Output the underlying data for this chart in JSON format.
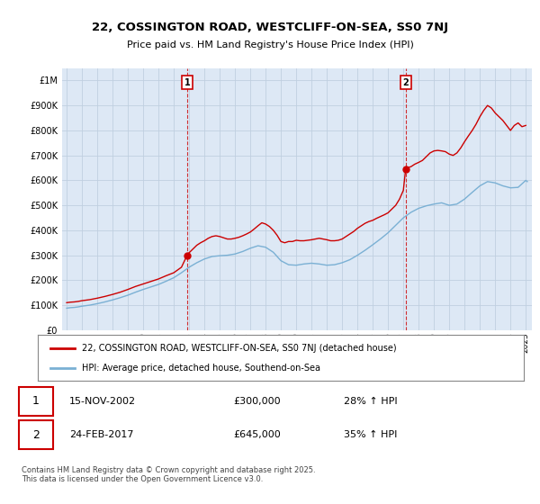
{
  "title_line1": "22, COSSINGTON ROAD, WESTCLIFF-ON-SEA, SS0 7NJ",
  "title_line2": "Price paid vs. HM Land Registry's House Price Index (HPI)",
  "legend_line1": "22, COSSINGTON ROAD, WESTCLIFF-ON-SEA, SS0 7NJ (detached house)",
  "legend_line2": "HPI: Average price, detached house, Southend-on-Sea",
  "annotation1_label": "1",
  "annotation1_date": "15-NOV-2002",
  "annotation1_price": "£300,000",
  "annotation1_hpi": "28% ↑ HPI",
  "annotation2_label": "2",
  "annotation2_date": "24-FEB-2017",
  "annotation2_price": "£645,000",
  "annotation2_hpi": "35% ↑ HPI",
  "footer": "Contains HM Land Registry data © Crown copyright and database right 2025.\nThis data is licensed under the Open Government Licence v3.0.",
  "red_color": "#cc0000",
  "blue_color": "#7ab0d4",
  "vline_color": "#cc0000",
  "plot_bg_color": "#dde8f5",
  "grid_color": "#c0cfe0",
  "ylim": [
    0,
    1050000
  ],
  "yticks": [
    0,
    100000,
    200000,
    300000,
    400000,
    500000,
    600000,
    700000,
    800000,
    900000,
    1000000
  ],
  "ytick_labels": [
    "£0",
    "£100K",
    "£200K",
    "£300K",
    "£400K",
    "£500K",
    "£600K",
    "£700K",
    "£800K",
    "£900K",
    "£1M"
  ],
  "sale1_x": 2002.87,
  "sale1_y": 300000,
  "sale2_x": 2017.15,
  "sale2_y": 645000,
  "red_line_data": [
    [
      1995.0,
      110000
    ],
    [
      1995.25,
      112000
    ],
    [
      1995.5,
      113000
    ],
    [
      1995.75,
      115000
    ],
    [
      1996.0,
      118000
    ],
    [
      1996.5,
      122000
    ],
    [
      1997.0,
      128000
    ],
    [
      1997.5,
      135000
    ],
    [
      1998.0,
      143000
    ],
    [
      1998.5,
      152000
    ],
    [
      1999.0,
      163000
    ],
    [
      1999.5,
      175000
    ],
    [
      2000.0,
      185000
    ],
    [
      2000.5,
      195000
    ],
    [
      2001.0,
      205000
    ],
    [
      2001.5,
      218000
    ],
    [
      2002.0,
      230000
    ],
    [
      2002.5,
      252000
    ],
    [
      2002.87,
      300000
    ],
    [
      2003.0,
      310000
    ],
    [
      2003.25,
      325000
    ],
    [
      2003.5,
      340000
    ],
    [
      2003.75,
      350000
    ],
    [
      2004.0,
      358000
    ],
    [
      2004.25,
      368000
    ],
    [
      2004.5,
      375000
    ],
    [
      2004.75,
      378000
    ],
    [
      2005.0,
      375000
    ],
    [
      2005.25,
      370000
    ],
    [
      2005.5,
      365000
    ],
    [
      2005.75,
      365000
    ],
    [
      2006.0,
      368000
    ],
    [
      2006.25,
      372000
    ],
    [
      2006.5,
      378000
    ],
    [
      2006.75,
      385000
    ],
    [
      2007.0,
      393000
    ],
    [
      2007.25,
      405000
    ],
    [
      2007.5,
      418000
    ],
    [
      2007.75,
      430000
    ],
    [
      2008.0,
      425000
    ],
    [
      2008.25,
      415000
    ],
    [
      2008.5,
      400000
    ],
    [
      2008.75,
      380000
    ],
    [
      2009.0,
      355000
    ],
    [
      2009.25,
      350000
    ],
    [
      2009.5,
      355000
    ],
    [
      2009.75,
      355000
    ],
    [
      2010.0,
      360000
    ],
    [
      2010.25,
      358000
    ],
    [
      2010.5,
      358000
    ],
    [
      2010.75,
      360000
    ],
    [
      2011.0,
      362000
    ],
    [
      2011.25,
      365000
    ],
    [
      2011.5,
      368000
    ],
    [
      2011.75,
      365000
    ],
    [
      2012.0,
      362000
    ],
    [
      2012.25,
      358000
    ],
    [
      2012.5,
      358000
    ],
    [
      2012.75,
      360000
    ],
    [
      2013.0,
      365000
    ],
    [
      2013.25,
      375000
    ],
    [
      2013.5,
      385000
    ],
    [
      2013.75,
      395000
    ],
    [
      2014.0,
      408000
    ],
    [
      2014.25,
      418000
    ],
    [
      2014.5,
      428000
    ],
    [
      2014.75,
      435000
    ],
    [
      2015.0,
      440000
    ],
    [
      2015.25,
      448000
    ],
    [
      2015.5,
      455000
    ],
    [
      2015.75,
      462000
    ],
    [
      2016.0,
      470000
    ],
    [
      2016.25,
      485000
    ],
    [
      2016.5,
      500000
    ],
    [
      2016.75,
      525000
    ],
    [
      2017.0,
      560000
    ],
    [
      2017.15,
      645000
    ],
    [
      2017.25,
      650000
    ],
    [
      2017.5,
      655000
    ],
    [
      2017.75,
      665000
    ],
    [
      2018.0,
      672000
    ],
    [
      2018.25,
      680000
    ],
    [
      2018.5,
      695000
    ],
    [
      2018.75,
      710000
    ],
    [
      2019.0,
      718000
    ],
    [
      2019.25,
      720000
    ],
    [
      2019.5,
      718000
    ],
    [
      2019.75,
      715000
    ],
    [
      2020.0,
      705000
    ],
    [
      2020.25,
      700000
    ],
    [
      2020.5,
      710000
    ],
    [
      2020.75,
      730000
    ],
    [
      2021.0,
      755000
    ],
    [
      2021.25,
      778000
    ],
    [
      2021.5,
      800000
    ],
    [
      2021.75,
      825000
    ],
    [
      2022.0,
      855000
    ],
    [
      2022.25,
      880000
    ],
    [
      2022.5,
      900000
    ],
    [
      2022.75,
      890000
    ],
    [
      2023.0,
      870000
    ],
    [
      2023.25,
      855000
    ],
    [
      2023.5,
      840000
    ],
    [
      2023.75,
      820000
    ],
    [
      2024.0,
      800000
    ],
    [
      2024.25,
      820000
    ],
    [
      2024.5,
      830000
    ],
    [
      2024.75,
      815000
    ],
    [
      2025.0,
      820000
    ]
  ],
  "blue_line_data": [
    [
      1995.0,
      88000
    ],
    [
      1995.25,
      90000
    ],
    [
      1995.5,
      91000
    ],
    [
      1995.75,
      93000
    ],
    [
      1996.0,
      96000
    ],
    [
      1996.5,
      100000
    ],
    [
      1997.0,
      106000
    ],
    [
      1997.5,
      113000
    ],
    [
      1998.0,
      121000
    ],
    [
      1998.5,
      130000
    ],
    [
      1999.0,
      140000
    ],
    [
      1999.5,
      152000
    ],
    [
      2000.0,
      163000
    ],
    [
      2000.5,
      173000
    ],
    [
      2001.0,
      183000
    ],
    [
      2001.5,
      196000
    ],
    [
      2002.0,
      210000
    ],
    [
      2002.5,
      230000
    ],
    [
      2003.0,
      252000
    ],
    [
      2003.5,
      270000
    ],
    [
      2004.0,
      285000
    ],
    [
      2004.5,
      295000
    ],
    [
      2005.0,
      298000
    ],
    [
      2005.5,
      300000
    ],
    [
      2006.0,
      305000
    ],
    [
      2006.5,
      315000
    ],
    [
      2007.0,
      328000
    ],
    [
      2007.5,
      338000
    ],
    [
      2008.0,
      332000
    ],
    [
      2008.5,
      312000
    ],
    [
      2009.0,
      278000
    ],
    [
      2009.5,
      262000
    ],
    [
      2010.0,
      260000
    ],
    [
      2010.5,
      265000
    ],
    [
      2011.0,
      268000
    ],
    [
      2011.5,
      265000
    ],
    [
      2012.0,
      260000
    ],
    [
      2012.5,
      262000
    ],
    [
      2013.0,
      270000
    ],
    [
      2013.5,
      282000
    ],
    [
      2014.0,
      300000
    ],
    [
      2014.5,
      320000
    ],
    [
      2015.0,
      342000
    ],
    [
      2015.5,
      365000
    ],
    [
      2016.0,
      390000
    ],
    [
      2016.5,
      420000
    ],
    [
      2017.0,
      450000
    ],
    [
      2017.5,
      472000
    ],
    [
      2018.0,
      488000
    ],
    [
      2018.5,
      498000
    ],
    [
      2019.0,
      505000
    ],
    [
      2019.5,
      510000
    ],
    [
      2020.0,
      500000
    ],
    [
      2020.5,
      505000
    ],
    [
      2021.0,
      525000
    ],
    [
      2021.5,
      552000
    ],
    [
      2022.0,
      578000
    ],
    [
      2022.5,
      595000
    ],
    [
      2023.0,
      590000
    ],
    [
      2023.5,
      578000
    ],
    [
      2024.0,
      570000
    ],
    [
      2024.5,
      572000
    ],
    [
      2025.0,
      600000
    ],
    [
      2025.1,
      595000
    ]
  ],
  "xticks": [
    1995,
    1996,
    1997,
    1998,
    1999,
    2000,
    2001,
    2002,
    2003,
    2004,
    2005,
    2006,
    2007,
    2008,
    2009,
    2010,
    2011,
    2012,
    2013,
    2014,
    2015,
    2016,
    2017,
    2018,
    2019,
    2020,
    2021,
    2022,
    2023,
    2024,
    2025
  ]
}
